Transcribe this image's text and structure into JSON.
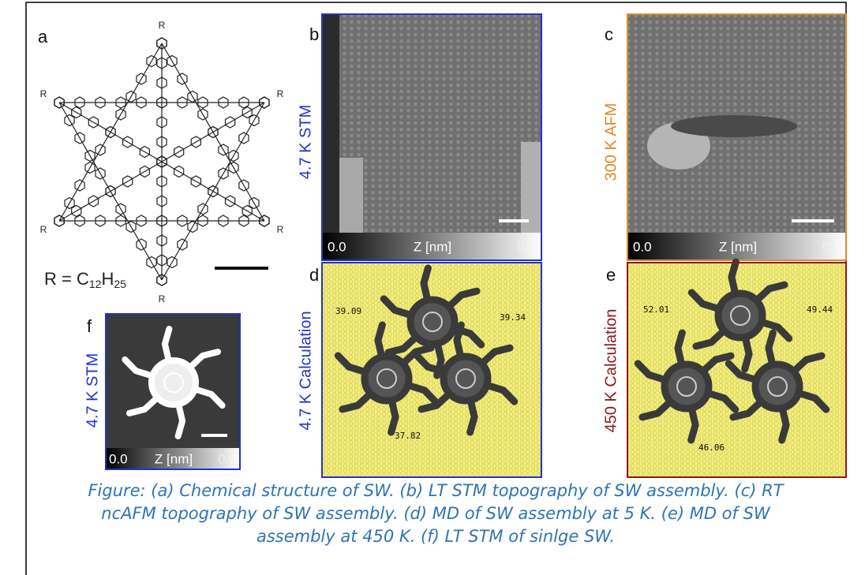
{
  "panel_letters": [
    "a",
    "b",
    "c",
    "d",
    "e",
    "f"
  ],
  "structure": {
    "r_label": "R",
    "formula": {
      "prefix": "R = C",
      "sub1": "12",
      "mid": "H",
      "sub2": "25"
    }
  },
  "side_labels": {
    "b": "4.7 K STM",
    "c": "300 K AFM",
    "d": "4.7 K Calculation",
    "e": "450 K Calculation",
    "f": "4.7 K STM"
  },
  "colorbars": {
    "b": {
      "min": "0.0",
      "label": "Z [nm]",
      "max": "0.6"
    },
    "c": {
      "min": "0.0",
      "label": "Z [nm]",
      "max": "0.6"
    },
    "f": {
      "min": "0.0",
      "label": "Z [nm]",
      "max": "0.2"
    }
  },
  "calc_labels": {
    "d": [
      "39.09",
      "39.34",
      "37.82"
    ],
    "e": [
      "52.01",
      "49.44",
      "46.06"
    ]
  },
  "caption": [
    "Figure: (a) Chemical structure of SW. (b) LT STM topography of SW assembly. (c) RT",
    "ncAFM topography of SW assembly. (d) MD of SW assembly at 5 K. (e) MD of SW",
    "assembly at 450 K. (f) LT STM of sinlge SW."
  ]
}
